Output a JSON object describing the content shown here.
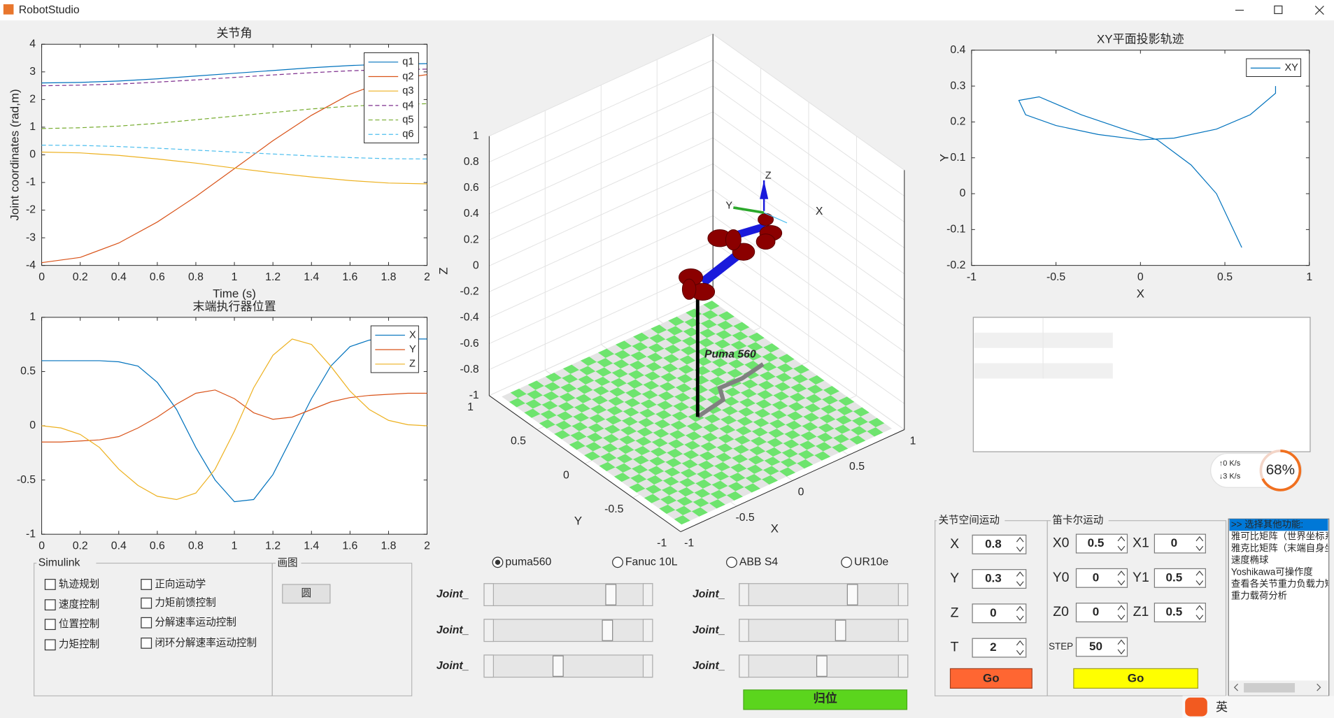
{
  "window": {
    "title": "RobotStudio"
  },
  "chart_data": [
    {
      "type": "line",
      "title": "关节角",
      "xlabel": "Time (s)",
      "ylabel": "Joint coordinates (rad,m)",
      "xlim": [
        0,
        2
      ],
      "ylim": [
        -4,
        4
      ],
      "xticks": [
        0,
        0.2,
        0.4,
        0.6,
        0.8,
        1,
        1.2,
        1.4,
        1.6,
        1.8,
        2
      ],
      "yticks": [
        -4,
        -3,
        -2,
        -1,
        0,
        1,
        2,
        3,
        4
      ],
      "legend": "northeast",
      "x": [
        0,
        0.2,
        0.4,
        0.6,
        0.8,
        1,
        1.2,
        1.4,
        1.6,
        1.8,
        2
      ],
      "series": [
        {
          "name": "q1",
          "color": "#0072bd",
          "style": "solid",
          "values": [
            2.6,
            2.62,
            2.67,
            2.75,
            2.85,
            2.95,
            3.05,
            3.15,
            3.23,
            3.28,
            3.3
          ]
        },
        {
          "name": "q2",
          "color": "#d95319",
          "style": "solid",
          "values": [
            -3.9,
            -3.71,
            -3.19,
            -2.43,
            -1.51,
            -0.5,
            0.51,
            1.43,
            2.19,
            2.71,
            2.9
          ]
        },
        {
          "name": "q3",
          "color": "#edb120",
          "style": "solid",
          "values": [
            0.1,
            0.07,
            -0.02,
            -0.15,
            -0.3,
            -0.48,
            -0.65,
            -0.8,
            -0.93,
            -1.02,
            -1.05
          ]
        },
        {
          "name": "q4",
          "color": "#7e2f8e",
          "style": "dashed",
          "values": [
            2.5,
            2.52,
            2.56,
            2.63,
            2.71,
            2.8,
            2.89,
            2.97,
            3.04,
            3.08,
            3.1
          ]
        },
        {
          "name": "q5",
          "color": "#77ac30",
          "style": "dashed",
          "values": [
            0.95,
            0.98,
            1.04,
            1.14,
            1.27,
            1.4,
            1.53,
            1.66,
            1.76,
            1.82,
            1.85
          ]
        },
        {
          "name": "q6",
          "color": "#4dbeee",
          "style": "dashed",
          "values": [
            0.35,
            0.34,
            0.3,
            0.24,
            0.17,
            0.1,
            0.03,
            -0.04,
            -0.1,
            -0.14,
            -0.15
          ]
        }
      ]
    },
    {
      "type": "line",
      "title": "末端执行器位置",
      "xlim": [
        0,
        2
      ],
      "ylim": [
        -1,
        1
      ],
      "xticks": [
        0,
        0.2,
        0.4,
        0.6,
        0.8,
        1,
        1.2,
        1.4,
        1.6,
        1.8,
        2
      ],
      "yticks": [
        -1,
        -0.5,
        0,
        0.5,
        1
      ],
      "legend": "northeast",
      "x": [
        0,
        0.1,
        0.2,
        0.3,
        0.4,
        0.5,
        0.6,
        0.7,
        0.8,
        0.9,
        1,
        1.1,
        1.2,
        1.3,
        1.4,
        1.5,
        1.6,
        1.7,
        1.8,
        1.9,
        2
      ],
      "series": [
        {
          "name": "X",
          "color": "#0072bd",
          "style": "solid",
          "values": [
            0.6,
            0.6,
            0.6,
            0.6,
            0.59,
            0.55,
            0.4,
            0.15,
            -0.2,
            -0.5,
            -0.7,
            -0.68,
            -0.45,
            -0.1,
            0.25,
            0.55,
            0.73,
            0.79,
            0.8,
            0.8,
            0.8
          ]
        },
        {
          "name": "Y",
          "color": "#d95319",
          "style": "solid",
          "values": [
            -0.15,
            -0.15,
            -0.14,
            -0.13,
            -0.1,
            -0.02,
            0.08,
            0.2,
            0.3,
            0.33,
            0.25,
            0.12,
            0.06,
            0.08,
            0.15,
            0.22,
            0.26,
            0.28,
            0.29,
            0.3,
            0.3
          ]
        },
        {
          "name": "Z",
          "color": "#edb120",
          "style": "solid",
          "values": [
            0,
            -0.02,
            -0.08,
            -0.2,
            -0.4,
            -0.55,
            -0.65,
            -0.68,
            -0.62,
            -0.4,
            -0.05,
            0.35,
            0.65,
            0.8,
            0.75,
            0.55,
            0.32,
            0.15,
            0.05,
            0.01,
            0
          ]
        }
      ]
    },
    {
      "type": "line",
      "title": "XY平面投影轨迹",
      "xlabel": "X",
      "ylabel": "Y",
      "xlim": [
        -1,
        1
      ],
      "ylim": [
        -0.2,
        0.4
      ],
      "xticks": [
        -1,
        -0.5,
        0,
        0.5,
        1
      ],
      "yticks": [
        -0.2,
        -0.1,
        0,
        0.1,
        0.2,
        0.3,
        0.4
      ],
      "legend": "northeast",
      "x": [
        0.6,
        0.45,
        0.3,
        0.1,
        -0.1,
        -0.35,
        -0.6,
        -0.72,
        -0.68,
        -0.5,
        -0.25,
        0,
        0.2,
        0.45,
        0.65,
        0.8,
        0.8
      ],
      "series": [
        {
          "name": "XY",
          "color": "#0072bd",
          "style": "solid",
          "values": [
            -0.15,
            0,
            0.08,
            0.15,
            0.18,
            0.22,
            0.27,
            0.26,
            0.22,
            0.19,
            0.165,
            0.15,
            0.155,
            0.18,
            0.22,
            0.28,
            0.3
          ]
        }
      ]
    },
    {
      "type": "3d",
      "xlabel": "X",
      "ylabel": "Y",
      "zlabel": "Z",
      "xlim": [
        -1,
        1
      ],
      "ylim": [
        -1,
        1
      ],
      "zlim": [
        -1,
        1
      ],
      "xticks": [
        -1,
        -0.5,
        0,
        0.5,
        1
      ],
      "yticks": [
        -1,
        -0.5,
        0,
        0.5,
        1
      ],
      "zticks": [
        -1,
        -0.8,
        -0.6,
        -0.4,
        -0.2,
        0,
        0.2,
        0.4,
        0.6,
        0.8,
        1
      ],
      "grid": true,
      "robot_name": "Puma 560",
      "frame_labels": [
        "X",
        "Y",
        "Z"
      ]
    }
  ],
  "controls": {
    "simulink": {
      "title": "Simulink",
      "options": [
        "轨迹规划",
        "速度控制",
        "位置控制",
        "力矩控制",
        "正向运动学",
        "力矩前馈控制",
        "分解速率运动控制",
        "闭环分解速率运动控制"
      ]
    },
    "draw_panel": {
      "title": "画图",
      "button": "圆"
    },
    "robots": {
      "options": [
        "puma560",
        "Fanuc 10L",
        "ABB S4",
        "UR10e"
      ],
      "selected": 0
    },
    "joint_sliders": [
      "Joint_",
      "Joint_",
      "Joint_",
      "Joint_",
      "Joint_",
      "Joint_"
    ],
    "home_button": "归位",
    "joint_space": {
      "title": "关节空间运动",
      "fields": [
        {
          "label": "X",
          "value": 0.8
        },
        {
          "label": "Y",
          "value": 0.3
        },
        {
          "label": "Z",
          "value": 0
        },
        {
          "label": "T",
          "value": 2
        }
      ],
      "button": "Go"
    },
    "cartesian": {
      "title": "笛卡尔运动",
      "fields": [
        {
          "label": "X0",
          "value": 0.5
        },
        {
          "label": "Y0",
          "value": 0
        },
        {
          "label": "Z0",
          "value": 0
        },
        {
          "label": "STEP",
          "value": 50
        },
        {
          "label": "X1",
          "value": 0
        },
        {
          "label": "Y1",
          "value": 0.5
        },
        {
          "label": "Z1",
          "value": 0.5
        }
      ],
      "button": "Go"
    },
    "function_list": [
      ">> 选择其他功能:",
      "雅可比矩阵（世界坐标系",
      "雅克比矩阵（末端自身坐",
      "速度椭球",
      "Yoshikawa可操作度",
      "查看各关节重力负载力矩",
      "重力载荷分析"
    ],
    "network": {
      "upload": "↑0  K/s",
      "download": "↓3  K/s",
      "usage": 68,
      "usage_label": "68%"
    },
    "tray": "英"
  }
}
